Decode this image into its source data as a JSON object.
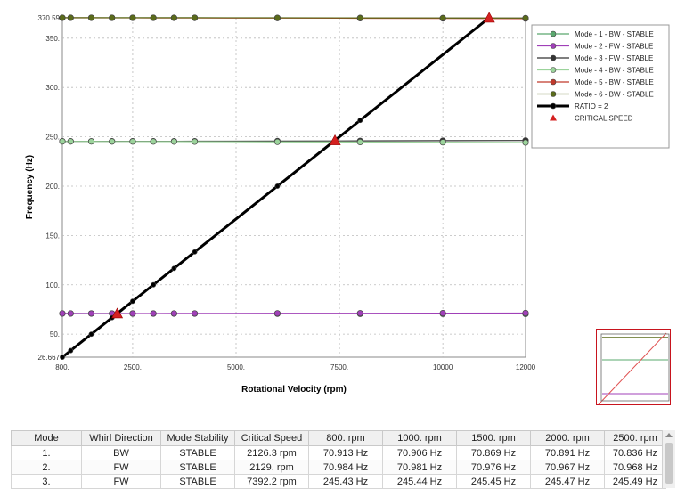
{
  "chart_data": {
    "type": "line",
    "xlabel": "Rotational Velocity (rpm)",
    "ylabel": "Frequency (Hz)",
    "xlim": [
      800,
      12000
    ],
    "ylim": [
      26.667,
      370.59
    ],
    "x_ticks": [
      800,
      2500,
      5000,
      7500,
      10000,
      12000
    ],
    "x_tick_labels": [
      "800.",
      "2500.",
      "5000.",
      "7500.",
      "10000",
      "12000"
    ],
    "y_ticks": [
      26.667,
      50,
      100,
      150,
      200,
      250,
      300,
      350,
      370.59
    ],
    "y_tick_labels": [
      "26.667",
      "50.",
      "100.",
      "150.",
      "200.",
      "250.",
      "300.",
      "350.",
      "370.59"
    ],
    "grid": true,
    "legend_position": "top-right",
    "series": [
      {
        "name": "Mode - 1  - BW  - STABLE",
        "color": "#5aa86e",
        "marker": "circle",
        "x": [
          800,
          1000,
          1500,
          2000,
          2500,
          3000,
          3500,
          4000,
          6000,
          8000,
          10000,
          12000
        ],
        "y": [
          70.913,
          70.906,
          70.869,
          70.891,
          70.836,
          70.82,
          70.8,
          70.78,
          70.7,
          70.62,
          70.55,
          70.5
        ]
      },
      {
        "name": "Mode - 2  - FW  - STABLE",
        "color": "#a040b8",
        "marker": "circle",
        "x": [
          800,
          1000,
          1500,
          2000,
          2500,
          3000,
          3500,
          4000,
          6000,
          8000,
          10000,
          12000
        ],
        "y": [
          70.984,
          70.981,
          70.976,
          70.967,
          70.968,
          70.97,
          70.98,
          71.0,
          71.1,
          71.2,
          71.3,
          71.4
        ]
      },
      {
        "name": "Mode - 3  - FW  - STABLE",
        "color": "#333333",
        "marker": "circle",
        "x": [
          800,
          1000,
          1500,
          2000,
          2500,
          3000,
          3500,
          4000,
          6000,
          8000,
          10000,
          12000
        ],
        "y": [
          245.43,
          245.44,
          245.45,
          245.47,
          245.49,
          245.5,
          245.52,
          245.55,
          245.7,
          245.9,
          246.1,
          246.3
        ]
      },
      {
        "name": "Mode - 4  - BW  - STABLE",
        "color": "#9bd39b",
        "marker": "circle",
        "x": [
          800,
          1000,
          1500,
          2000,
          2500,
          3000,
          3500,
          4000,
          6000,
          8000,
          10000,
          12000
        ],
        "y": [
          245.4,
          245.38,
          245.35,
          245.3,
          245.28,
          245.25,
          245.2,
          245.15,
          244.9,
          244.7,
          244.5,
          244.2
        ]
      },
      {
        "name": "Mode - 5  - BW  - STABLE",
        "color": "#c0392b",
        "marker": "circle",
        "x": [
          800,
          1000,
          1500,
          2000,
          2500,
          3000,
          3500,
          4000,
          6000,
          8000,
          10000,
          12000
        ],
        "y": [
          370.59,
          370.58,
          370.56,
          370.54,
          370.52,
          370.5,
          370.48,
          370.45,
          370.3,
          370.15,
          370.0,
          369.8
        ]
      },
      {
        "name": "Mode - 6  - BW  - STABLE",
        "color": "#5a6b1a",
        "marker": "circle",
        "x": [
          800,
          1000,
          1500,
          2000,
          2500,
          3000,
          3500,
          4000,
          6000,
          8000,
          10000,
          12000
        ],
        "y": [
          370.7,
          370.7,
          370.7,
          370.7,
          370.7,
          370.7,
          370.7,
          370.7,
          370.6,
          370.5,
          370.4,
          370.3
        ]
      },
      {
        "name": "RATIO = 2",
        "color": "#000000",
        "marker": "circle",
        "thick": true,
        "x": [
          800,
          1000,
          1500,
          2000,
          2500,
          3000,
          3500,
          4000,
          6000,
          8000,
          11120
        ],
        "y": [
          26.667,
          33.333,
          50,
          66.667,
          83.333,
          100,
          116.667,
          133.333,
          200,
          266.667,
          370.59
        ]
      }
    ],
    "critical_speed": {
      "name": "CRITICAL SPEED",
      "color": "#d42020",
      "marker": "triangle",
      "x": [
        2126.3,
        7392.2,
        11120
      ],
      "y": [
        70.91,
        246.4,
        370.59
      ]
    }
  },
  "table": {
    "headers": [
      "Mode",
      "Whirl Direction",
      "Mode Stability",
      "Critical Speed",
      "800. rpm",
      "1000. rpm",
      "1500. rpm",
      "2000. rpm",
      "2500. rpm"
    ],
    "rows": [
      [
        "1.",
        "BW",
        "STABLE",
        "2126.3 rpm",
        "70.913 Hz",
        "70.906 Hz",
        "70.869 Hz",
        "70.891 Hz",
        "70.836 Hz"
      ],
      [
        "2.",
        "FW",
        "STABLE",
        "2129. rpm",
        "70.984 Hz",
        "70.981 Hz",
        "70.976 Hz",
        "70.967 Hz",
        "70.968 Hz"
      ],
      [
        "3.",
        "FW",
        "STABLE",
        "7392.2 rpm",
        "245.43 Hz",
        "245.44 Hz",
        "245.45 Hz",
        "245.47 Hz",
        "245.49 Hz"
      ]
    ]
  }
}
